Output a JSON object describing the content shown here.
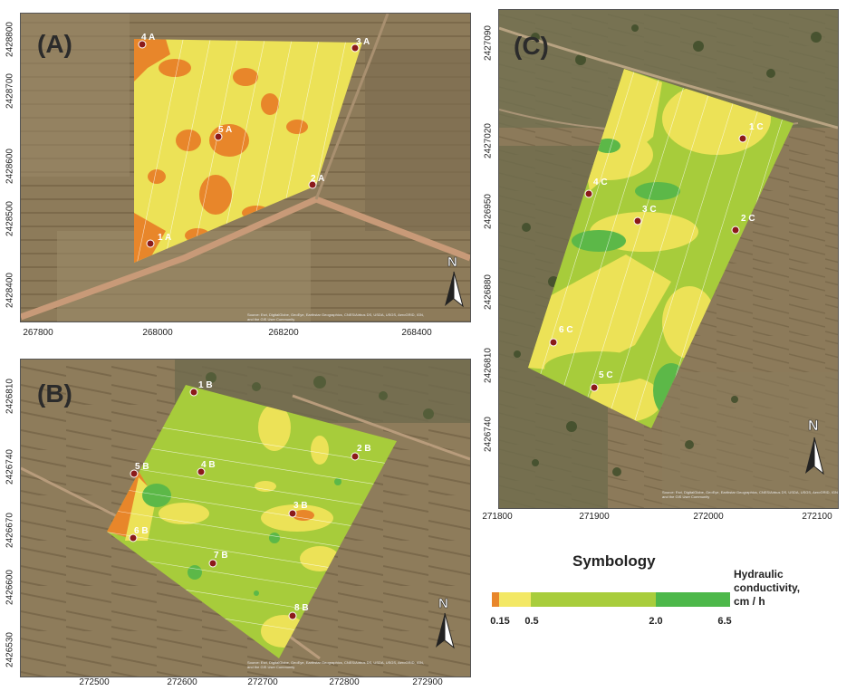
{
  "panels": {
    "A": {
      "letter": "(A)",
      "x_ticks": [
        "267800",
        "268000",
        "268200",
        "268400"
      ],
      "y_ticks": [
        "2428800",
        "2428700",
        "2428600",
        "2428500",
        "2428400"
      ],
      "sites": [
        "1 A",
        "2 A",
        "3 A",
        "4 A",
        "5 A"
      ],
      "north": "N",
      "credit": "Source: Esri, DigitalGlobe, GeoEye, Earthstar Geographics, CNES/Airbus DS, USDA, USGS, AeroGRID, IGN, and the GIS User Community"
    },
    "B": {
      "letter": "(B)",
      "x_ticks": [
        "272500",
        "272600",
        "272700",
        "272800",
        "272900"
      ],
      "y_ticks": [
        "2426810",
        "2426740",
        "2426670",
        "2426600",
        "2426530"
      ],
      "sites": [
        "1 B",
        "2 B",
        "3 B",
        "4 B",
        "5 B",
        "6 B",
        "7 B",
        "8 B"
      ],
      "north": "N",
      "credit": "Source: Esri, DigitalGlobe, GeoEye, Earthstar Geographics, CNES/Airbus DS, USDA, USGS, AeroGRID, IGN, and the GIS User Community"
    },
    "C": {
      "letter": "(C)",
      "x_ticks": [
        "271800",
        "271900",
        "272000",
        "272100"
      ],
      "y_ticks": [
        "2427090",
        "2427020",
        "2426950",
        "2426880",
        "2426810",
        "2426740"
      ],
      "sites": [
        "1 C",
        "2 C",
        "3 C",
        "4 C",
        "5 C",
        "6 C"
      ],
      "north": "N",
      "credit": "Source: Esri, DigitalGlobe, GeoEye, Earthstar Geographics, CNES/Airbus DS, USDA, USGS, AeroGRID, IGN, and the GIS User Community"
    }
  },
  "legend": {
    "title": "Symbology",
    "quantity_lines": [
      "Hydraulic",
      "conductivity,",
      "cm / h"
    ],
    "ticks": [
      "0.15",
      "0.5",
      "2.0",
      "6.5"
    ],
    "class_colors": [
      "#e8862a",
      "#f3e865",
      "#a8cd3c",
      "#4db84a"
    ]
  },
  "colors": {
    "orange": "#e8862a",
    "yellow": "#ece257",
    "light_green": "#a7cc3b",
    "green": "#5cb848",
    "site_marker": "#8b1a1a"
  }
}
